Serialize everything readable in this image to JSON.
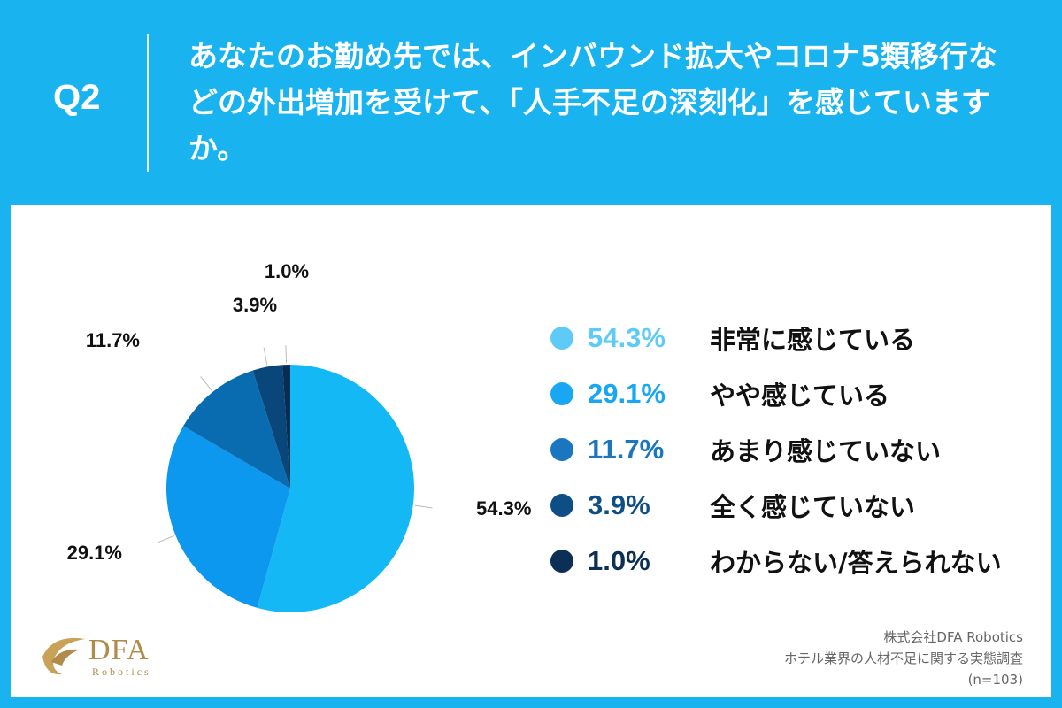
{
  "header": {
    "qnum": "Q2",
    "question": "あなたのお勤め先では、インバウンド拡大やコロナ5類移行などの外出増加を受けて、「人手不足の深刻化」を感じていますか。"
  },
  "chart_data": {
    "type": "pie",
    "title": "",
    "slices": [
      {
        "label": "非常に感じている",
        "value": 54.3,
        "display": "54.3%",
        "color": "#14b8f5"
      },
      {
        "label": "やや感じている",
        "value": 29.1,
        "display": "29.1%",
        "color": "#0b98ee"
      },
      {
        "label": "あまり感じていない",
        "value": 11.7,
        "display": "11.7%",
        "color": "#0a6cb0"
      },
      {
        "label": "全く感じていない",
        "value": 3.9,
        "display": "3.9%",
        "color": "#09477b"
      },
      {
        "label": "わからない/答えられない",
        "value": 1.0,
        "display": "1.0%",
        "color": "#082d52"
      }
    ],
    "legend_placement": "right"
  },
  "legend_colors": [
    "#5ecbf7",
    "#19a7f3",
    "#1a77bf",
    "#0f4e85",
    "#0b2f55"
  ],
  "footer": {
    "company": "株式会社DFA Robotics",
    "survey": "ホテル業界の人材不足に関する実態調査",
    "n": "(n=103)"
  },
  "logo": {
    "main": "DFA",
    "sub": "Robotics"
  }
}
